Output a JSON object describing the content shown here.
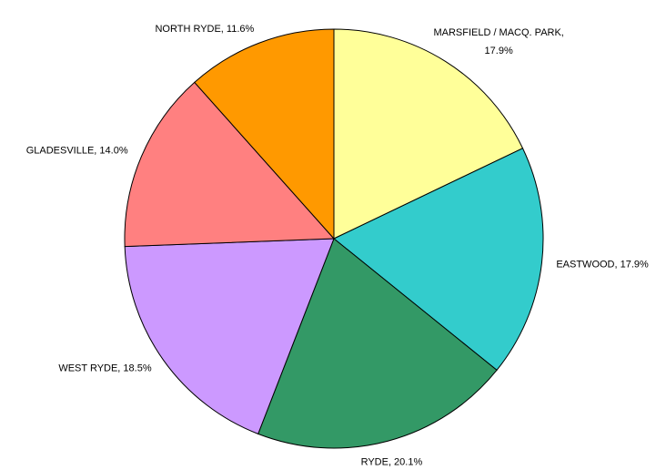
{
  "chart_data": {
    "type": "pie",
    "values": [
      17.9,
      17.9,
      20.1,
      18.5,
      14.0,
      11.6
    ],
    "value_labels": [
      [
        "MARSFIELD / MACQ. PARK,",
        "17.9%"
      ],
      "EASTWOOD, 17.9%",
      "RYDE, 20.1%",
      "WEST RYDE, 18.5%",
      "GLADESVILLE, 14.0%",
      "NORTH RYDE, 11.6%"
    ],
    "colors": [
      "#ffff99",
      "#33cccc",
      "#339966",
      "#cc99ff",
      "#ff8080",
      "#ff9900"
    ]
  }
}
